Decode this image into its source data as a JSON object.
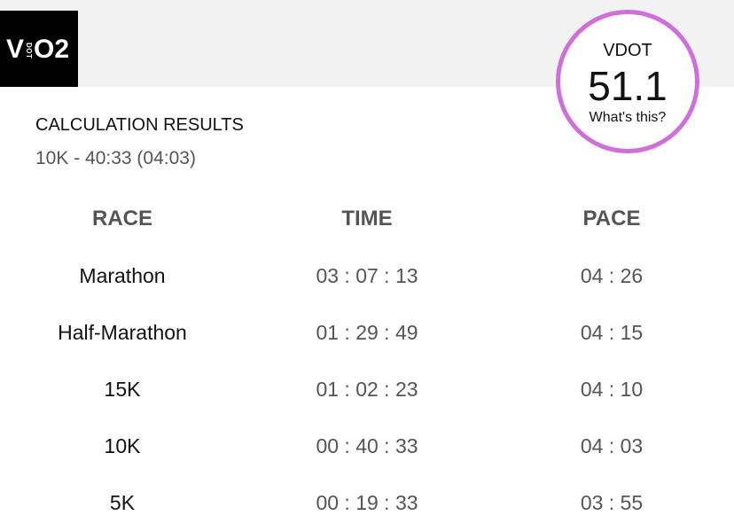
{
  "logo": {
    "v": "V",
    "dot": "DOT",
    "o2": "O2"
  },
  "vdot": {
    "label": "VDOT",
    "value": "51.1",
    "link": "What's this?"
  },
  "results": {
    "title": "CALCULATION RESULTS",
    "subtitle": "10K - 40:33 (04:03)"
  },
  "table": {
    "headers": [
      "RACE",
      "TIME",
      "PACE"
    ],
    "rows": [
      [
        "Marathon",
        "03 : 07 : 13",
        "04 : 26"
      ],
      [
        "Half-Marathon",
        "01 : 29 : 49",
        "04 : 15"
      ],
      [
        "15K",
        "01 : 02 : 23",
        "04 : 10"
      ],
      [
        "10K",
        "00 : 40 : 33",
        "04 : 03"
      ],
      [
        "5K",
        "00 : 19 : 33",
        "03 : 55"
      ]
    ]
  }
}
